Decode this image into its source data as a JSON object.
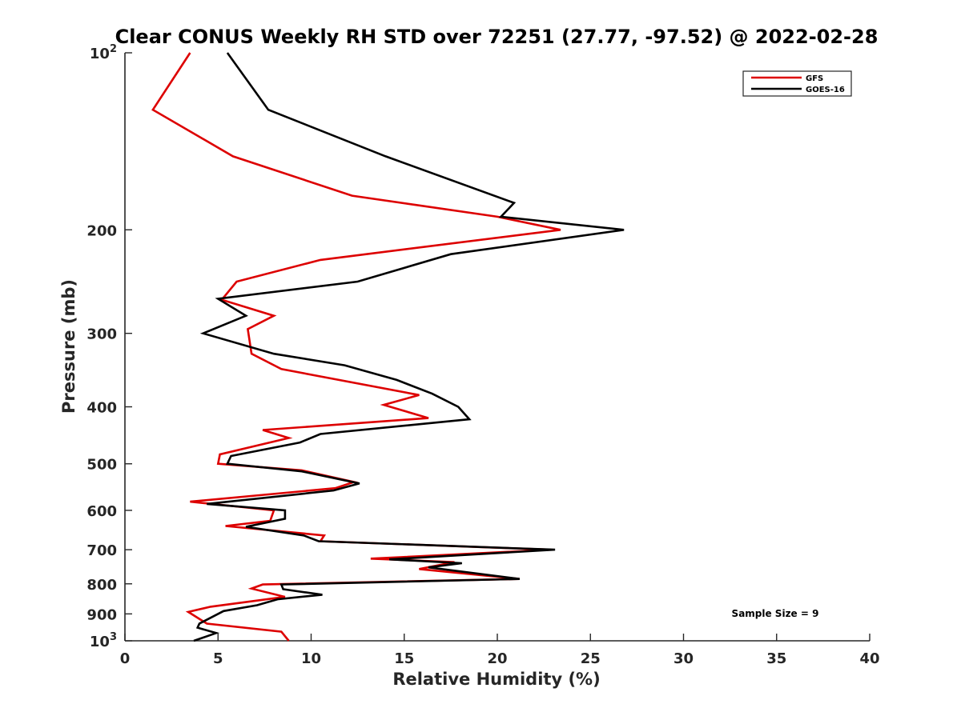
{
  "chart_data": {
    "type": "line",
    "title": "Clear CONUS Weekly RH STD over 72251 (27.77, -97.52) @ 2022-02-28",
    "xlabel": "Relative Humidity (%)",
    "ylabel": "Pressure (mb)",
    "xlim": [
      0,
      40
    ],
    "ylim": [
      100,
      1000
    ],
    "y_scale": "log",
    "y_reversed": true,
    "x_ticks": [
      "0",
      "5",
      "10",
      "15",
      "20",
      "25",
      "30",
      "35",
      "40"
    ],
    "y_ticks": [
      {
        "value": 100,
        "base": "10",
        "sup": "2"
      },
      {
        "value": 200,
        "base": "200",
        "sup": ""
      },
      {
        "value": 300,
        "base": "300",
        "sup": ""
      },
      {
        "value": 400,
        "base": "400",
        "sup": ""
      },
      {
        "value": 500,
        "base": "500",
        "sup": ""
      },
      {
        "value": 600,
        "base": "600",
        "sup": ""
      },
      {
        "value": 700,
        "base": "700",
        "sup": ""
      },
      {
        "value": 800,
        "base": "800",
        "sup": ""
      },
      {
        "value": 900,
        "base": "900",
        "sup": ""
      },
      {
        "value": 1000,
        "base": "10",
        "sup": "3"
      }
    ],
    "grid": false,
    "legend_position": "top-right",
    "series": [
      {
        "name": "GFS",
        "color": "#dd0000",
        "points": [
          [
            3.5,
            100
          ],
          [
            1.5,
            125
          ],
          [
            5.8,
            150
          ],
          [
            12.2,
            175
          ],
          [
            20.0,
            190
          ],
          [
            23.4,
            200
          ],
          [
            10.5,
            225
          ],
          [
            6.0,
            245
          ],
          [
            5.2,
            263
          ],
          [
            8.0,
            280
          ],
          [
            6.6,
            295
          ],
          [
            6.8,
            325
          ],
          [
            8.4,
            345
          ],
          [
            15.8,
            382
          ],
          [
            13.9,
            397
          ],
          [
            16.3,
            418
          ],
          [
            7.4,
            438
          ],
          [
            8.8,
            452
          ],
          [
            5.1,
            482
          ],
          [
            5.0,
            500
          ],
          [
            9.5,
            513
          ],
          [
            12.3,
            537
          ],
          [
            11.3,
            550
          ],
          [
            3.5,
            580
          ],
          [
            8.0,
            600
          ],
          [
            7.8,
            625
          ],
          [
            5.4,
            638
          ],
          [
            10.7,
            662
          ],
          [
            10.5,
            677
          ],
          [
            22.9,
            700
          ],
          [
            13.2,
            725
          ],
          [
            17.7,
            735
          ],
          [
            15.8,
            755
          ],
          [
            21.2,
            785
          ],
          [
            7.4,
            802
          ],
          [
            6.8,
            815
          ],
          [
            8.6,
            842
          ],
          [
            4.6,
            875
          ],
          [
            3.4,
            893
          ],
          [
            4.4,
            935
          ],
          [
            8.4,
            965
          ],
          [
            8.8,
            1000
          ]
        ]
      },
      {
        "name": "GOES-16",
        "color": "#000000",
        "points": [
          [
            5.5,
            100
          ],
          [
            7.7,
            125
          ],
          [
            14.0,
            150
          ],
          [
            20.9,
            180
          ],
          [
            20.2,
            190
          ],
          [
            26.8,
            200
          ],
          [
            17.5,
            220
          ],
          [
            12.5,
            245
          ],
          [
            5.0,
            262
          ],
          [
            6.5,
            280
          ],
          [
            4.2,
            300
          ],
          [
            8.0,
            325
          ],
          [
            11.8,
            340
          ],
          [
            14.6,
            360
          ],
          [
            16.5,
            380
          ],
          [
            17.9,
            400
          ],
          [
            18.5,
            420
          ],
          [
            10.5,
            445
          ],
          [
            9.4,
            460
          ],
          [
            5.7,
            485
          ],
          [
            5.5,
            500
          ],
          [
            9.5,
            515
          ],
          [
            12.6,
            540
          ],
          [
            11.2,
            555
          ],
          [
            4.4,
            585
          ],
          [
            8.6,
            600
          ],
          [
            8.6,
            620
          ],
          [
            6.5,
            640
          ],
          [
            9.6,
            662
          ],
          [
            10.4,
            677
          ],
          [
            23.1,
            700
          ],
          [
            14.2,
            727
          ],
          [
            18.1,
            738
          ],
          [
            16.3,
            750
          ],
          [
            21.2,
            785
          ],
          [
            8.4,
            802
          ],
          [
            8.5,
            817
          ],
          [
            10.6,
            835
          ],
          [
            8.2,
            850
          ],
          [
            7.1,
            870
          ],
          [
            5.3,
            890
          ],
          [
            4.0,
            935
          ],
          [
            3.9,
            950
          ],
          [
            4.9,
            970
          ],
          [
            3.7,
            1000
          ]
        ]
      }
    ],
    "annotations": [
      "Sample Size = 9"
    ]
  }
}
